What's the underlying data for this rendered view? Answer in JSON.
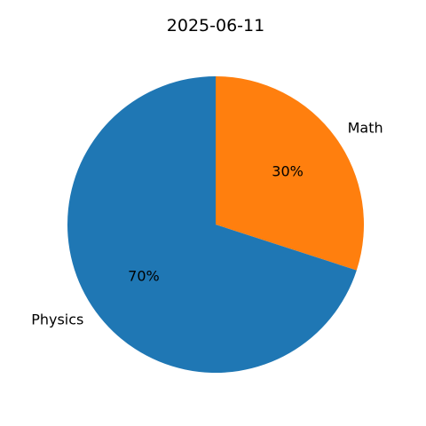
{
  "chart_data": {
    "type": "pie",
    "title": "2025-06-11",
    "slices": [
      {
        "label": "Math",
        "value": 30,
        "pct_label": "30%",
        "color": "#ff7f0e"
      },
      {
        "label": "Physics",
        "value": 70,
        "pct_label": "70%",
        "color": "#1f77b4"
      }
    ],
    "start_angle_deg": 90,
    "direction": "clockwise",
    "legend": "none"
  }
}
